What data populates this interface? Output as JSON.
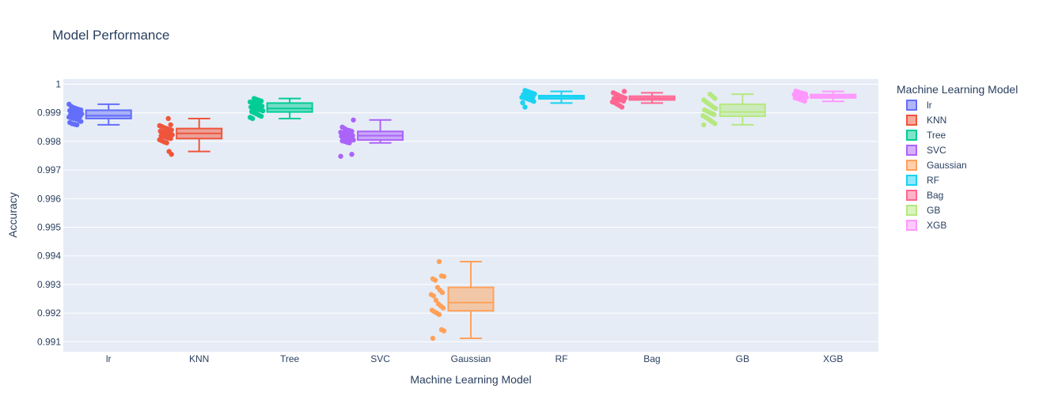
{
  "chart_data": {
    "type": "box",
    "title": "Model Performance",
    "xlabel": "Machine Learning Model",
    "ylabel": "Accuracy",
    "ylim": [
      0.99065,
      1.00018
    ],
    "yticks": [
      0.991,
      0.992,
      0.993,
      0.994,
      0.995,
      0.996,
      0.997,
      0.998,
      0.999,
      1
    ],
    "ytick_labels": [
      "0.991",
      "0.992",
      "0.993",
      "0.994",
      "0.995",
      "0.996",
      "0.997",
      "0.998",
      "0.999",
      "1"
    ],
    "grid": true,
    "plot_bgcolor": "#e5ecf6",
    "legend": {
      "title": "Machine Learning Model",
      "placement": "right"
    },
    "categories": [
      "lr",
      "KNN",
      "Tree",
      "SVC",
      "Gaussian",
      "RF",
      "Bag",
      "GB",
      "XGB"
    ],
    "series": [
      {
        "name": "lr",
        "color": "#636efa",
        "box": {
          "min": 0.99858,
          "q1": 0.9988,
          "median": 0.9989,
          "q3": 0.99909,
          "max": 0.9993
        },
        "points": [
          0.9993,
          0.99922,
          0.99918,
          0.99915,
          0.99912,
          0.9991,
          0.99908,
          0.99906,
          0.99903,
          0.999,
          0.99898,
          0.99896,
          0.99894,
          0.99892,
          0.9989,
          0.99889,
          0.99887,
          0.99885,
          0.99882,
          0.9988,
          0.99878,
          0.99875,
          0.9987,
          0.99866,
          0.99862,
          0.9986,
          0.99858
        ]
      },
      {
        "name": "KNN",
        "color": "#ef553b",
        "box": {
          "min": 0.99765,
          "q1": 0.9981,
          "median": 0.99828,
          "q3": 0.99845,
          "max": 0.9988
        },
        "points": [
          0.9988,
          0.99858,
          0.99855,
          0.99852,
          0.99848,
          0.99845,
          0.99842,
          0.9984,
          0.99836,
          0.99833,
          0.9983,
          0.99828,
          0.99826,
          0.99823,
          0.9982,
          0.99818,
          0.99815,
          0.99812,
          0.9981,
          0.99806,
          0.99802,
          0.99798,
          0.99795,
          0.99765,
          0.99755
        ]
      },
      {
        "name": "Tree",
        "color": "#00cc96",
        "box": {
          "min": 0.9988,
          "q1": 0.99903,
          "median": 0.99915,
          "q3": 0.99934,
          "max": 0.9995
        },
        "points": [
          0.9995,
          0.99947,
          0.99944,
          0.99941,
          0.99938,
          0.99935,
          0.99932,
          0.99929,
          0.99926,
          0.99923,
          0.9992,
          0.99918,
          0.99915,
          0.99912,
          0.9991,
          0.99907,
          0.99904,
          0.999,
          0.99896,
          0.99892,
          0.99888,
          0.99884,
          0.9988
        ]
      },
      {
        "name": "SVC",
        "color": "#ab63fa",
        "box": {
          "min": 0.99795,
          "q1": 0.99805,
          "median": 0.9982,
          "q3": 0.99835,
          "max": 0.99875
        },
        "points": [
          0.99875,
          0.9985,
          0.99845,
          0.9984,
          0.99838,
          0.99835,
          0.99832,
          0.9983,
          0.99827,
          0.99825,
          0.99822,
          0.9982,
          0.99818,
          0.99815,
          0.99812,
          0.9981,
          0.99808,
          0.99805,
          0.99802,
          0.998,
          0.99797,
          0.99795,
          0.99755,
          0.99748
        ]
      },
      {
        "name": "Gaussian",
        "color": "#ffa15a",
        "box": {
          "min": 0.99112,
          "q1": 0.99208,
          "median": 0.99237,
          "q3": 0.9929,
          "max": 0.9938
        },
        "points": [
          0.9938,
          0.9933,
          0.99328,
          0.9932,
          0.99315,
          0.9929,
          0.9928,
          0.99272,
          0.99265,
          0.9926,
          0.99245,
          0.99232,
          0.99225,
          0.99218,
          0.9921,
          0.99205,
          0.992,
          0.99195,
          0.99142,
          0.99138,
          0.99112
        ]
      },
      {
        "name": "RF",
        "color": "#19d3f3",
        "box": {
          "min": 0.99934,
          "q1": 0.99949,
          "median": 0.99955,
          "q3": 0.9996,
          "max": 0.99975
        },
        "points": [
          0.99978,
          0.99975,
          0.99972,
          0.99969,
          0.99966,
          0.99964,
          0.99962,
          0.9996,
          0.99958,
          0.99956,
          0.99954,
          0.99952,
          0.9995,
          0.99947,
          0.99944,
          0.9994,
          0.99935,
          0.9992
        ]
      },
      {
        "name": "Bag",
        "color": "#ff6692",
        "box": {
          "min": 0.99934,
          "q1": 0.99945,
          "median": 0.99951,
          "q3": 0.99958,
          "max": 0.9997
        },
        "points": [
          0.99975,
          0.9997,
          0.99966,
          0.99962,
          0.99958,
          0.99955,
          0.99952,
          0.9995,
          0.99948,
          0.99946,
          0.99944,
          0.99941,
          0.99938,
          0.99935,
          0.9993,
          0.99925,
          0.9992
        ]
      },
      {
        "name": "GB",
        "color": "#b6e880",
        "box": {
          "min": 0.99858,
          "q1": 0.99888,
          "median": 0.99903,
          "q3": 0.9993,
          "max": 0.99965
        },
        "points": [
          0.99965,
          0.99958,
          0.9995,
          0.99945,
          0.99938,
          0.99932,
          0.99926,
          0.9992,
          0.99915,
          0.9991,
          0.99906,
          0.99902,
          0.99898,
          0.99894,
          0.9989,
          0.99885,
          0.9988,
          0.99874,
          0.99868,
          0.99862,
          0.99858
        ]
      },
      {
        "name": "XGB",
        "color": "#ff97ff",
        "box": {
          "min": 0.9994,
          "q1": 0.99952,
          "median": 0.99958,
          "q3": 0.99964,
          "max": 0.99975
        },
        "points": [
          0.99976,
          0.99973,
          0.9997,
          0.99968,
          0.99966,
          0.99964,
          0.99962,
          0.9996,
          0.99958,
          0.99956,
          0.99954,
          0.99952,
          0.9995,
          0.99947,
          0.99944,
          0.99941
        ]
      }
    ]
  }
}
